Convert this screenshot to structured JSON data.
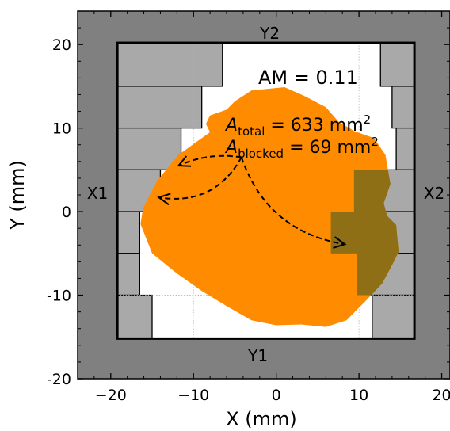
{
  "chart_data": {
    "type": "diagram",
    "xlabel": "X (mm)",
    "ylabel": "Y (mm)",
    "xlim": [
      -24,
      21
    ],
    "ylim": [
      -20,
      24
    ],
    "x_ticks": [
      {
        "value": -20,
        "label": "−20"
      },
      {
        "value": -10,
        "label": "−10"
      },
      {
        "value": 0,
        "label": "0"
      },
      {
        "value": 10,
        "label": "10"
      },
      {
        "value": 20,
        "label": "20"
      }
    ],
    "y_ticks": [
      {
        "value": -20,
        "label": "-20"
      },
      {
        "value": -10,
        "label": "-10"
      },
      {
        "value": 0,
        "label": "0"
      },
      {
        "value": 10,
        "label": "10"
      },
      {
        "value": 20,
        "label": "20"
      }
    ],
    "jaw_labels": {
      "x1": "X1",
      "x2": "X2",
      "y1": "Y1",
      "y2": "Y2"
    },
    "field": {
      "x_min": -19.2,
      "x_max": 16.7,
      "y_min": -15.2,
      "y_max": 20.2
    },
    "leaves_left": [
      {
        "y0": 15,
        "y1": 20.2,
        "x": -6.5
      },
      {
        "y0": 10,
        "y1": 15,
        "x": -9
      },
      {
        "y0": 5,
        "y1": 10,
        "x": -11.5
      },
      {
        "y0": 0,
        "y1": 5,
        "x": -14
      },
      {
        "y0": -5,
        "y1": 0,
        "x": -16.5
      },
      {
        "y0": -10,
        "y1": -5,
        "x": -16.5
      },
      {
        "y0": -15.2,
        "y1": -10,
        "x": -15
      }
    ],
    "leaves_right": [
      {
        "y0": 15,
        "y1": 20.2,
        "x": 12.6
      },
      {
        "y0": 10,
        "y1": 15,
        "x": 14
      },
      {
        "y0": 5,
        "y1": 10,
        "x": 14.5
      },
      {
        "y0": 0,
        "y1": 5,
        "x": 9.4
      },
      {
        "y0": -5,
        "y1": 0,
        "x": 6.6
      },
      {
        "y0": -10,
        "y1": -5,
        "x": 9.8
      },
      {
        "y0": -15.2,
        "y1": -10,
        "x": 11.6
      }
    ],
    "target_outline": [
      [
        -3,
        14.5
      ],
      [
        1,
        14.9
      ],
      [
        3.5,
        13.8
      ],
      [
        6,
        12.5
      ],
      [
        7.5,
        10.8
      ],
      [
        9.5,
        9.6
      ],
      [
        11.8,
        8.8
      ],
      [
        13.2,
        6.8
      ],
      [
        13.8,
        3.3
      ],
      [
        13,
        1
      ],
      [
        13.4,
        -0.5
      ],
      [
        14.5,
        -1.6
      ],
      [
        14.8,
        -4.8
      ],
      [
        14,
        -6.4
      ],
      [
        12.8,
        -8.6
      ],
      [
        11,
        -10.5
      ],
      [
        8.5,
        -13
      ],
      [
        6,
        -13.8
      ],
      [
        3,
        -13.5
      ],
      [
        0,
        -13.6
      ],
      [
        -3,
        -13
      ],
      [
        -6,
        -11.3
      ],
      [
        -9,
        -9.5
      ],
      [
        -12,
        -7.4
      ],
      [
        -15,
        -5
      ],
      [
        -16.4,
        -1.5
      ],
      [
        -16.1,
        0.4
      ],
      [
        -14.4,
        3.7
      ],
      [
        -11.8,
        6.8
      ],
      [
        -8,
        9.5
      ],
      [
        -8.5,
        10.5
      ],
      [
        -8,
        11.5
      ],
      [
        -6,
        12.2
      ],
      [
        -5,
        13.2
      ]
    ],
    "annotation": {
      "am_text": "AM = 0.11",
      "a_symbol": "A",
      "total_subscript": "total",
      "total_value": " = 633 mm",
      "blocked_subscript": "blocked",
      "blocked_value": " = 69 mm",
      "unit_exponent": "2"
    },
    "arrows": [
      {
        "from": [
          -4.2,
          6.5
        ],
        "to": [
          -11.8,
          5.5
        ],
        "bend": 0.15
      },
      {
        "from": [
          -4.2,
          6.5
        ],
        "to": [
          -14.2,
          1.7
        ],
        "bend": -0.35
      },
      {
        "from": [
          -4.2,
          6.5
        ],
        "to": [
          8.3,
          -3.9
        ],
        "bend": 0.3
      }
    ],
    "grid_lines_x": [
      -10,
      10
    ],
    "grid_lines_y": [
      -10,
      10
    ],
    "colors": {
      "background_jaw": "#808080",
      "leaf": "#a9a9a9",
      "field": "#ffffff",
      "target": "#ff8c00",
      "blocked_overlay": "#7a6a1a"
    }
  }
}
